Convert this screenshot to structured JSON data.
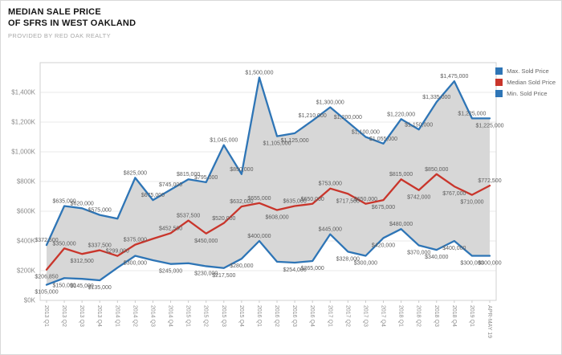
{
  "header": {
    "title_line1": "MEDIAN SALE PRICE",
    "title_line2": "OF SFRS IN WEST OAKLAND",
    "subtitle": "PROVIDED BY RED OAK REALTY"
  },
  "legend": {
    "items": [
      {
        "label": "Max. Sold Price",
        "color": "#2e75b6"
      },
      {
        "label": "Median Sold Price",
        "color": "#c9352b"
      },
      {
        "label": "Min. Sold Price",
        "color": "#2e75b6"
      }
    ]
  },
  "chart_data": {
    "type": "line",
    "title": "MEDIAN SALE PRICE OF SFRS IN WEST OAKLAND",
    "subtitle": "PROVIDED BY RED OAK REALTY",
    "legend_position": "top-right",
    "grid": true,
    "band_fill_between_max_and_min": true,
    "band_color": "#d7d7d7",
    "ylim": [
      0,
      1600000
    ],
    "y_tick_step": 200000,
    "y_ticks": [
      "$0K",
      "$200K",
      "$400K",
      "$600K",
      "$800K",
      "$1,000K",
      "$1,200K",
      "$1,400K"
    ],
    "categories": [
      "2013 Q1",
      "2013 Q2",
      "2013 Q3",
      "2013 Q4",
      "2014 Q1",
      "2014 Q2",
      "2014 Q3",
      "2014 Q4",
      "2015 Q1",
      "2015 Q2",
      "2015 Q3",
      "2015 Q4",
      "2016 Q1",
      "2016 Q2",
      "2016 Q3",
      "2016 Q4",
      "2017 Q1",
      "2017 Q2",
      "2017 Q3",
      "2017 Q4",
      "2018 Q1",
      "2018 Q2",
      "2018 Q3",
      "2018 Q4",
      "2019 Q1",
      "APR-MAY 19"
    ],
    "series": [
      {
        "name": "Max. Sold Price",
        "color": "#2e75b6",
        "values": [
          372500,
          635000,
          620000,
          575000,
          550000,
          825000,
          675000,
          745000,
          815000,
          795000,
          1045000,
          850000,
          1500000,
          1105000,
          1125000,
          1210000,
          1300000,
          1200000,
          1100000,
          1055000,
          1220000,
          1150000,
          1335000,
          1475000,
          1225000,
          1225000
        ],
        "hide_labels": [
          4
        ],
        "label_side": "above",
        "label_flip": [
          13,
          14,
          25
        ]
      },
      {
        "name": "Median Sold Price",
        "color": "#c9352b",
        "values": [
          206850,
          350000,
          312500,
          337500,
          299000,
          375000,
          415000,
          452500,
          537500,
          450000,
          520000,
          632000,
          655000,
          608000,
          635000,
          650000,
          753000,
          717500,
          650000,
          675000,
          815000,
          742000,
          850000,
          767000,
          710000,
          772500
        ],
        "hide_labels": [
          6
        ],
        "label_side": "above",
        "label_flip": [
          0,
          2,
          9,
          13,
          17,
          19,
          21,
          23,
          24
        ]
      },
      {
        "name": "Min. Sold Price",
        "color": "#2e75b6",
        "values": [
          105000,
          150000,
          145000,
          135000,
          220000,
          300000,
          270000,
          245000,
          250000,
          230000,
          217500,
          280000,
          400000,
          260000,
          254000,
          265000,
          445000,
          328000,
          300000,
          420000,
          480000,
          370000,
          340000,
          400000,
          300000,
          300000
        ],
        "hide_labels": [
          4,
          6,
          8,
          13
        ],
        "label_side": "below",
        "label_flip": [
          12,
          16,
          20
        ]
      }
    ]
  }
}
